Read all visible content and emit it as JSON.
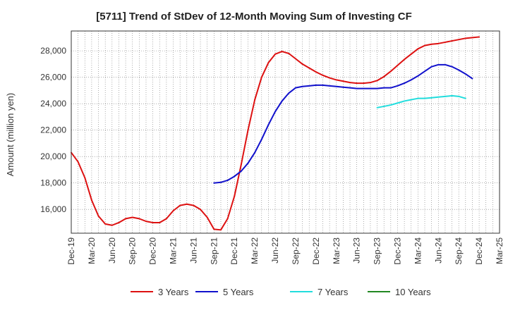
{
  "chart_data": {
    "type": "line",
    "title": "[5711]  Trend of StDev of 12-Month Moving Sum of Investing CF",
    "xlabel": "",
    "ylabel": "Amount (million yen)",
    "ylim": [
      14200,
      29500
    ],
    "yticks": [
      16000,
      18000,
      20000,
      22000,
      24000,
      26000,
      28000
    ],
    "ytick_labels": [
      "16,000",
      "18,000",
      "20,000",
      "22,000",
      "24,000",
      "26,000",
      "28,000"
    ],
    "x_range": [
      "Dec-19",
      "Mar-25"
    ],
    "xtick_labels": [
      "Dec-19",
      "Mar-20",
      "Jun-20",
      "Sep-20",
      "Dec-20",
      "Mar-21",
      "Jun-21",
      "Sep-21",
      "Dec-21",
      "Mar-22",
      "Jun-22",
      "Sep-22",
      "Dec-22",
      "Mar-23",
      "Jun-23",
      "Sep-23",
      "Dec-23",
      "Mar-24",
      "Jun-24",
      "Sep-24",
      "Dec-24",
      "Mar-25"
    ],
    "grid": true,
    "legend_position": "bottom",
    "series": [
      {
        "name": "3 Years",
        "color": "#dd1111",
        "start": "Dec-19",
        "values": [
          20300,
          19600,
          18400,
          16700,
          15500,
          14900,
          14800,
          15000,
          15300,
          15400,
          15300,
          15100,
          15000,
          15000,
          15300,
          15900,
          16300,
          16400,
          16300,
          16000,
          15400,
          14500,
          14450,
          15300,
          17000,
          19400,
          22000,
          24300,
          26000,
          27100,
          27750,
          27950,
          27800,
          27400,
          27000,
          26700,
          26400,
          26150,
          25950,
          25800,
          25700,
          25600,
          25550,
          25550,
          25600,
          25750,
          26050,
          26450,
          26900,
          27350,
          27750,
          28150,
          28400,
          28500,
          28550,
          28650,
          28750,
          28850,
          28950,
          29000,
          29050
        ]
      },
      {
        "name": "5 Years",
        "color": "#1111cc",
        "start": "Sep-21",
        "values": [
          18000,
          18050,
          18200,
          18500,
          18900,
          19500,
          20300,
          21300,
          22400,
          23400,
          24200,
          24800,
          25200,
          25300,
          25350,
          25400,
          25400,
          25350,
          25300,
          25250,
          25200,
          25150,
          25150,
          25150,
          25150,
          25200,
          25200,
          25350,
          25550,
          25800,
          26100,
          26450,
          26800,
          26950,
          26950,
          26800,
          26550,
          26250,
          25900
        ]
      },
      {
        "name": "7 Years",
        "color": "#22dddd",
        "start": "Sep-23",
        "values": [
          23700,
          23800,
          23900,
          24050,
          24200,
          24300,
          24400,
          24400,
          24450,
          24500,
          24550,
          24600,
          24550,
          24400
        ]
      },
      {
        "name": "10 Years",
        "color": "#228822",
        "start": "Sep-24",
        "values": []
      }
    ]
  }
}
